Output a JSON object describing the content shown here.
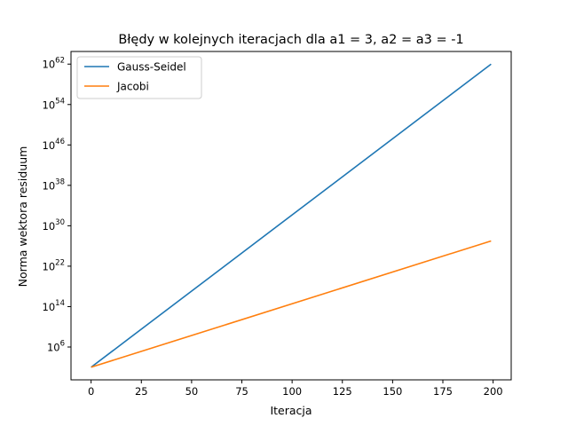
{
  "chart_data": {
    "type": "line",
    "title": "Błędy w kolejnych iteracjach dla a1 = 3, a2 = a3 = -1",
    "xlabel": "Iteracja",
    "ylabel": "Norma wektora residuum",
    "y_scale": "log",
    "xlim": [
      -10,
      209
    ],
    "ylim_log10": [
      -0.5,
      64.5
    ],
    "x_ticks": [
      0,
      25,
      50,
      75,
      100,
      125,
      150,
      175,
      200
    ],
    "y_ticks": [
      {
        "base": "10",
        "exp": "6",
        "log": 6
      },
      {
        "base": "10",
        "exp": "14",
        "log": 14
      },
      {
        "base": "10",
        "exp": "22",
        "log": 22
      },
      {
        "base": "10",
        "exp": "30",
        "log": 30
      },
      {
        "base": "10",
        "exp": "38",
        "log": 38
      },
      {
        "base": "10",
        "exp": "46",
        "log": 46
      },
      {
        "base": "10",
        "exp": "54",
        "log": 54
      },
      {
        "base": "10",
        "exp": "62",
        "log": 62
      }
    ],
    "grid": false,
    "legend_position": "top-left",
    "series": [
      {
        "name": "Gauss-Seidel",
        "color": "#1f77b4",
        "x": [
          0,
          199
        ],
        "y": [
          "1e2",
          "1e62"
        ]
      },
      {
        "name": "Jacobi",
        "color": "#ff7f0e",
        "x": [
          0,
          199
        ],
        "y": [
          "1e2",
          "1e27"
        ]
      }
    ]
  }
}
